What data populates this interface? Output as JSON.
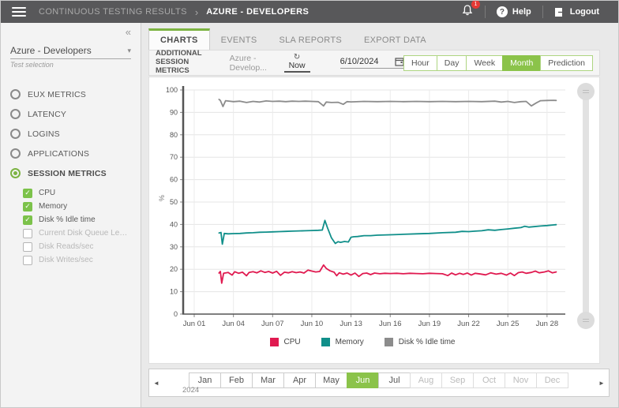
{
  "topbar": {
    "breadcrumb_root": "CONTINUOUS TESTING RESULTS",
    "breadcrumb_separator": "›",
    "breadcrumb_current": "AZURE - DEVELOPERS",
    "notification_count": "1",
    "help_label": "Help",
    "logout_label": "Logout"
  },
  "icons": {
    "collapse": "«",
    "caret_down": "▾",
    "refresh": "↻",
    "check": "✓",
    "prev_arrow": "◄",
    "next_arrow": "►",
    "help_glyph": "?"
  },
  "sidebar": {
    "test_select": {
      "value": "Azure - Developers",
      "caption": "Test selection"
    },
    "categories": [
      {
        "label": "EUX METRICS",
        "selected": false
      },
      {
        "label": "LATENCY",
        "selected": false
      },
      {
        "label": "LOGINS",
        "selected": false
      },
      {
        "label": "APPLICATIONS",
        "selected": false
      },
      {
        "label": "SESSION METRICS",
        "selected": true
      }
    ],
    "metrics": [
      {
        "label": "CPU",
        "checked": true
      },
      {
        "label": "Memory",
        "checked": true
      },
      {
        "label": "Disk % Idle time",
        "checked": true
      },
      {
        "label": "Current Disk Queue Leng...",
        "checked": false
      },
      {
        "label": "Disk Reads/sec",
        "checked": false
      },
      {
        "label": "Disk Writes/sec",
        "checked": false
      }
    ]
  },
  "tabs": [
    {
      "label": "CHARTS",
      "active": true
    },
    {
      "label": "EVENTS",
      "active": false
    },
    {
      "label": "SLA REPORTS",
      "active": false
    },
    {
      "label": "EXPORT DATA",
      "active": false
    }
  ],
  "toolbar": {
    "title_line1": "ADDITIONAL SESSION",
    "title_line2": "METRICS",
    "context_label": "Azure - Develop...",
    "refresh_label": "Now",
    "date_value": "6/10/2024",
    "range_buttons": [
      {
        "label": "Hour",
        "active": false
      },
      {
        "label": "Day",
        "active": false
      },
      {
        "label": "Week",
        "active": false
      },
      {
        "label": "Month",
        "active": true
      },
      {
        "label": "Prediction",
        "active": false
      }
    ]
  },
  "chart_data": {
    "type": "line",
    "title": "",
    "xlabel": "",
    "ylabel": "%",
    "ylim": [
      0,
      100
    ],
    "ytick_step": 10,
    "grid": true,
    "legend_position": "bottom",
    "x_ticks": [
      {
        "day": 1,
        "label": "Jun 01"
      },
      {
        "day": 4,
        "label": "Jun 04"
      },
      {
        "day": 7,
        "label": "Jun 07"
      },
      {
        "day": 10,
        "label": "Jun 10"
      },
      {
        "day": 13,
        "label": "Jun 13"
      },
      {
        "day": 16,
        "label": "Jun 16"
      },
      {
        "day": 19,
        "label": "Jun 19"
      },
      {
        "day": 22,
        "label": "Jun 22"
      },
      {
        "day": 25,
        "label": "Jun 25"
      },
      {
        "day": 28,
        "label": "Jun 28"
      }
    ],
    "series": [
      {
        "name": "CPU",
        "color": "#e01a50",
        "points": [
          [
            2.9,
            18.3
          ],
          [
            3.0,
            19.0
          ],
          [
            3.1,
            13.8
          ],
          [
            3.25,
            18.2
          ],
          [
            3.6,
            18.6
          ],
          [
            3.9,
            17.4
          ],
          [
            4.1,
            18.9
          ],
          [
            4.4,
            18.2
          ],
          [
            4.7,
            18.7
          ],
          [
            5.0,
            17.1
          ],
          [
            5.2,
            18.6
          ],
          [
            5.5,
            18.9
          ],
          [
            5.8,
            18.4
          ],
          [
            6.1,
            19.3
          ],
          [
            6.4,
            18.6
          ],
          [
            6.7,
            19.0
          ],
          [
            7.0,
            18.3
          ],
          [
            7.3,
            19.1
          ],
          [
            7.6,
            17.3
          ],
          [
            7.9,
            18.7
          ],
          [
            8.2,
            18.4
          ],
          [
            8.5,
            18.9
          ],
          [
            8.8,
            18.5
          ],
          [
            9.1,
            18.8
          ],
          [
            9.4,
            18.3
          ],
          [
            9.7,
            19.6
          ],
          [
            10.0,
            19.2
          ],
          [
            10.3,
            18.8
          ],
          [
            10.6,
            19.0
          ],
          [
            10.9,
            21.9
          ],
          [
            11.1,
            20.4
          ],
          [
            11.4,
            19.3
          ],
          [
            11.7,
            18.7
          ],
          [
            11.9,
            17.1
          ],
          [
            12.1,
            18.4
          ],
          [
            12.4,
            17.8
          ],
          [
            12.7,
            18.3
          ],
          [
            13.0,
            17.4
          ],
          [
            13.3,
            18.3
          ],
          [
            13.6,
            16.8
          ],
          [
            13.9,
            18.1
          ],
          [
            14.2,
            18.3
          ],
          [
            14.5,
            17.6
          ],
          [
            14.8,
            18.3
          ],
          [
            15.2,
            18.0
          ],
          [
            15.6,
            18.2
          ],
          [
            16.0,
            18.1
          ],
          [
            16.5,
            18.2
          ],
          [
            17.0,
            18.0
          ],
          [
            17.5,
            18.2
          ],
          [
            18.0,
            18.1
          ],
          [
            18.5,
            18.0
          ],
          [
            19.0,
            18.2
          ],
          [
            19.5,
            18.1
          ],
          [
            20.0,
            18.0
          ],
          [
            20.4,
            17.2
          ],
          [
            20.7,
            18.3
          ],
          [
            21.0,
            17.5
          ],
          [
            21.3,
            18.2
          ],
          [
            21.6,
            17.7
          ],
          [
            21.9,
            18.3
          ],
          [
            22.2,
            17.4
          ],
          [
            22.5,
            18.2
          ],
          [
            22.9,
            17.9
          ],
          [
            23.3,
            17.5
          ],
          [
            23.7,
            18.4
          ],
          [
            24.1,
            17.8
          ],
          [
            24.5,
            18.2
          ],
          [
            24.9,
            17.4
          ],
          [
            25.2,
            18.3
          ],
          [
            25.5,
            17.2
          ],
          [
            25.8,
            18.5
          ],
          [
            26.1,
            18.8
          ],
          [
            26.4,
            18.2
          ],
          [
            26.8,
            18.6
          ],
          [
            27.1,
            19.2
          ],
          [
            27.4,
            18.4
          ],
          [
            27.8,
            18.8
          ],
          [
            28.1,
            19.3
          ],
          [
            28.4,
            18.4
          ],
          [
            28.7,
            18.8
          ]
        ]
      },
      {
        "name": "Memory",
        "color": "#108f8a",
        "points": [
          [
            2.9,
            36.2
          ],
          [
            3.05,
            36.4
          ],
          [
            3.15,
            31.2
          ],
          [
            3.3,
            36.0
          ],
          [
            3.6,
            35.8
          ],
          [
            4.0,
            35.9
          ],
          [
            4.5,
            36.0
          ],
          [
            5.0,
            36.2
          ],
          [
            5.5,
            36.3
          ],
          [
            6.0,
            36.5
          ],
          [
            6.5,
            36.6
          ],
          [
            7.0,
            36.7
          ],
          [
            7.5,
            36.8
          ],
          [
            8.0,
            36.9
          ],
          [
            8.5,
            37.0
          ],
          [
            9.0,
            37.1
          ],
          [
            9.5,
            37.2
          ],
          [
            10.0,
            37.3
          ],
          [
            10.5,
            37.4
          ],
          [
            10.8,
            37.5
          ],
          [
            11.0,
            41.8
          ],
          [
            11.2,
            38.5
          ],
          [
            11.5,
            34.0
          ],
          [
            11.8,
            31.5
          ],
          [
            12.0,
            32.3
          ],
          [
            12.2,
            32.0
          ],
          [
            12.5,
            32.4
          ],
          [
            12.8,
            32.2
          ],
          [
            13.0,
            34.3
          ],
          [
            13.2,
            34.5
          ],
          [
            13.5,
            34.6
          ],
          [
            14.0,
            35.0
          ],
          [
            14.5,
            35.0
          ],
          [
            15.0,
            35.2
          ],
          [
            16.0,
            35.4
          ],
          [
            17.0,
            35.6
          ],
          [
            18.0,
            35.8
          ],
          [
            19.0,
            36.0
          ],
          [
            20.0,
            36.3
          ],
          [
            21.0,
            36.5
          ],
          [
            21.5,
            36.9
          ],
          [
            22.0,
            36.8
          ],
          [
            22.5,
            37.0
          ],
          [
            23.0,
            37.2
          ],
          [
            23.5,
            37.6
          ],
          [
            24.0,
            37.4
          ],
          [
            24.5,
            37.7
          ],
          [
            25.0,
            38.0
          ],
          [
            25.5,
            38.3
          ],
          [
            26.0,
            38.6
          ],
          [
            26.3,
            39.2
          ],
          [
            26.6,
            38.8
          ],
          [
            27.0,
            39.0
          ],
          [
            27.5,
            39.3
          ],
          [
            28.0,
            39.5
          ],
          [
            28.5,
            39.8
          ],
          [
            28.7,
            39.9
          ]
        ]
      },
      {
        "name": "Disk % Idle time",
        "color": "#8c8c8c",
        "points": [
          [
            2.9,
            95.8
          ],
          [
            3.0,
            95.3
          ],
          [
            3.2,
            92.6
          ],
          [
            3.4,
            95.2
          ],
          [
            4.0,
            94.8
          ],
          [
            4.5,
            95.0
          ],
          [
            5.0,
            94.4
          ],
          [
            5.5,
            94.9
          ],
          [
            6.0,
            94.6
          ],
          [
            6.5,
            95.1
          ],
          [
            7.0,
            94.9
          ],
          [
            7.5,
            95.0
          ],
          [
            8.0,
            94.8
          ],
          [
            8.5,
            95.0
          ],
          [
            9.0,
            94.9
          ],
          [
            9.5,
            95.0
          ],
          [
            10.0,
            94.9
          ],
          [
            10.5,
            94.8
          ],
          [
            10.9,
            92.9
          ],
          [
            11.1,
            94.6
          ],
          [
            11.5,
            94.4
          ],
          [
            12.0,
            94.5
          ],
          [
            12.4,
            93.6
          ],
          [
            12.7,
            94.8
          ],
          [
            13.0,
            94.7
          ],
          [
            14.0,
            94.9
          ],
          [
            15.0,
            94.8
          ],
          [
            16.0,
            94.9
          ],
          [
            17.0,
            94.8
          ],
          [
            18.0,
            94.9
          ],
          [
            19.0,
            94.8
          ],
          [
            20.0,
            94.9
          ],
          [
            21.0,
            94.8
          ],
          [
            22.0,
            94.9
          ],
          [
            23.0,
            94.8
          ],
          [
            24.0,
            95.0
          ],
          [
            24.5,
            94.6
          ],
          [
            25.0,
            94.9
          ],
          [
            25.5,
            94.4
          ],
          [
            26.0,
            94.8
          ],
          [
            26.4,
            94.9
          ],
          [
            26.8,
            92.9
          ],
          [
            27.2,
            94.3
          ],
          [
            27.5,
            95.2
          ],
          [
            28.0,
            95.3
          ],
          [
            28.5,
            95.4
          ],
          [
            28.7,
            95.3
          ]
        ]
      }
    ]
  },
  "month_bar": {
    "year": "2024",
    "months": [
      {
        "label": "Jan",
        "state": "enabled"
      },
      {
        "label": "Feb",
        "state": "enabled"
      },
      {
        "label": "Mar",
        "state": "enabled"
      },
      {
        "label": "Apr",
        "state": "enabled"
      },
      {
        "label": "May",
        "state": "enabled"
      },
      {
        "label": "Jun",
        "state": "selected"
      },
      {
        "label": "Jul",
        "state": "enabled"
      },
      {
        "label": "Aug",
        "state": "disabled"
      },
      {
        "label": "Sep",
        "state": "disabled"
      },
      {
        "label": "Oct",
        "state": "disabled"
      },
      {
        "label": "Nov",
        "state": "disabled"
      },
      {
        "label": "Dec",
        "state": "disabled"
      }
    ]
  }
}
